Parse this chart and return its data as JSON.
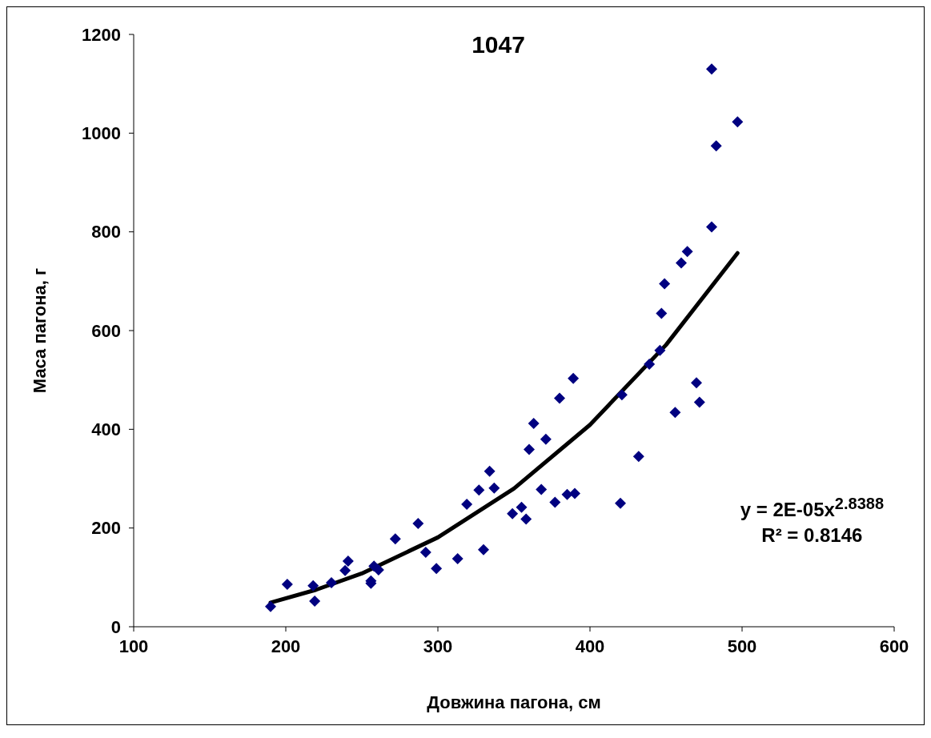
{
  "chart_data": {
    "type": "scatter",
    "title": "1047",
    "xlabel": "Довжина пагона, см",
    "ylabel": "Маса пагона, г",
    "xlim": [
      100,
      600
    ],
    "xticks": [
      100,
      200,
      300,
      400,
      500,
      600
    ],
    "ylim": [
      0,
      1200
    ],
    "yticks": [
      0,
      200,
      400,
      600,
      800,
      1000,
      1200
    ],
    "grid": false,
    "marker": "diamond",
    "annotations": [
      "y = 2E-05x$^{2.8388}$",
      "R² = 0.8146"
    ],
    "series": [
      {
        "type": "scatter",
        "color": "#000080",
        "x": [
          190,
          201,
          218,
          219,
          230,
          239,
          241,
          256,
          256,
          258,
          261,
          272,
          287,
          292,
          299,
          313,
          319,
          327,
          330,
          334,
          337,
          349,
          355,
          358,
          360,
          363,
          368,
          371,
          377,
          380,
          385,
          390,
          389,
          421,
          420,
          432,
          439,
          446,
          447,
          449,
          456,
          460,
          464,
          470,
          472,
          480,
          480,
          483,
          497
        ],
        "values": [
          41,
          86,
          83,
          52,
          89,
          114,
          133,
          93,
          88,
          123,
          115,
          178,
          209,
          151,
          118,
          138,
          248,
          277,
          156,
          315,
          281,
          229,
          242,
          218,
          359,
          412,
          278,
          380,
          252,
          463,
          268,
          270,
          503,
          470,
          250,
          345,
          532,
          560,
          635,
          695,
          434,
          737,
          760,
          494,
          455,
          810,
          1130,
          974,
          1023
        ]
      },
      {
        "type": "line",
        "color": "#000000",
        "marker": "none",
        "x": [
          190,
          220,
          250,
          300,
          350,
          400,
          450,
          497
        ],
        "values": [
          49,
          75,
          108,
          181,
          280,
          409,
          571,
          757
        ]
      }
    ]
  }
}
